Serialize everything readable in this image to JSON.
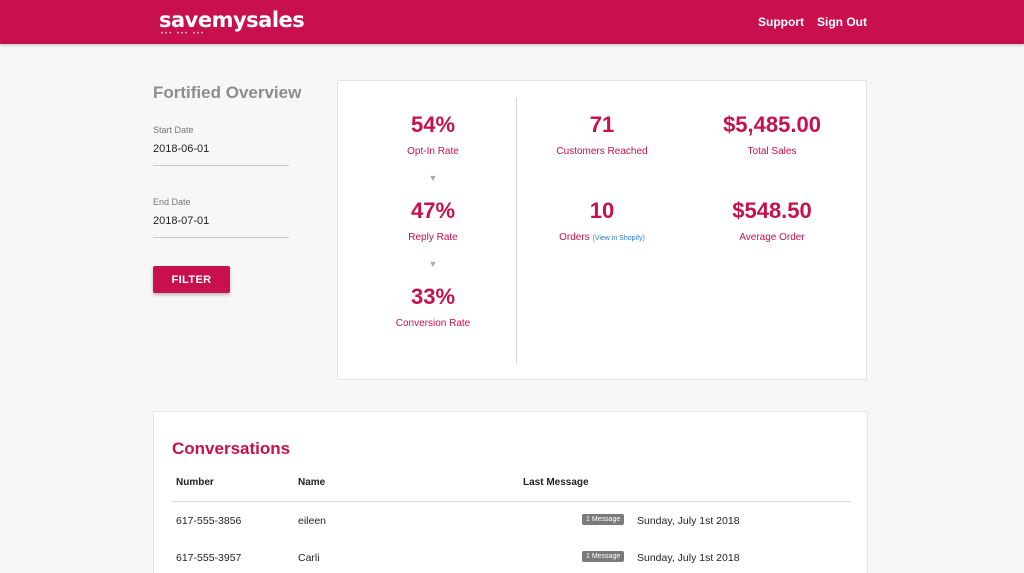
{
  "header": {
    "logo": "savemysales",
    "logo_dots": "••• ••• •••",
    "links": {
      "support": "Support",
      "sign_out": "Sign Out"
    }
  },
  "colors": {
    "brand": "#c8104e",
    "badge": "#7a7a7a",
    "link": "#2a7ad8"
  },
  "sidebar": {
    "title": "Fortified Overview",
    "start_date": {
      "label": "Start Date",
      "value": "2018-06-01"
    },
    "end_date": {
      "label": "End Date",
      "value": "2018-07-01"
    },
    "filter_label": "FILTER"
  },
  "stats": {
    "funnel": [
      {
        "value": "54%",
        "label": "Opt-In Rate"
      },
      {
        "value": "47%",
        "label": "Reply Rate"
      },
      {
        "value": "33%",
        "label": "Conversion Rate"
      }
    ],
    "funnel_arrow": "▼",
    "customers_reached": {
      "value": "71",
      "label": "Customers Reached"
    },
    "total_sales": {
      "value": "$5,485.00",
      "label": "Total Sales"
    },
    "orders": {
      "value": "10",
      "label": "Orders",
      "link": "(View in Shopify)"
    },
    "average_order": {
      "value": "$548.50",
      "label": "Average Order"
    }
  },
  "conversations": {
    "title": "Conversations",
    "columns": {
      "number": "Number",
      "name": "Name",
      "last_message": "Last Message"
    },
    "rows": [
      {
        "number": "617-555-3856",
        "name": "eileen",
        "badge": "1 Message",
        "date": "Sunday, July 1st 2018"
      },
      {
        "number": "617-555-3957",
        "name": "Carli",
        "badge": "1 Message",
        "date": "Sunday, July 1st 2018"
      }
    ]
  }
}
